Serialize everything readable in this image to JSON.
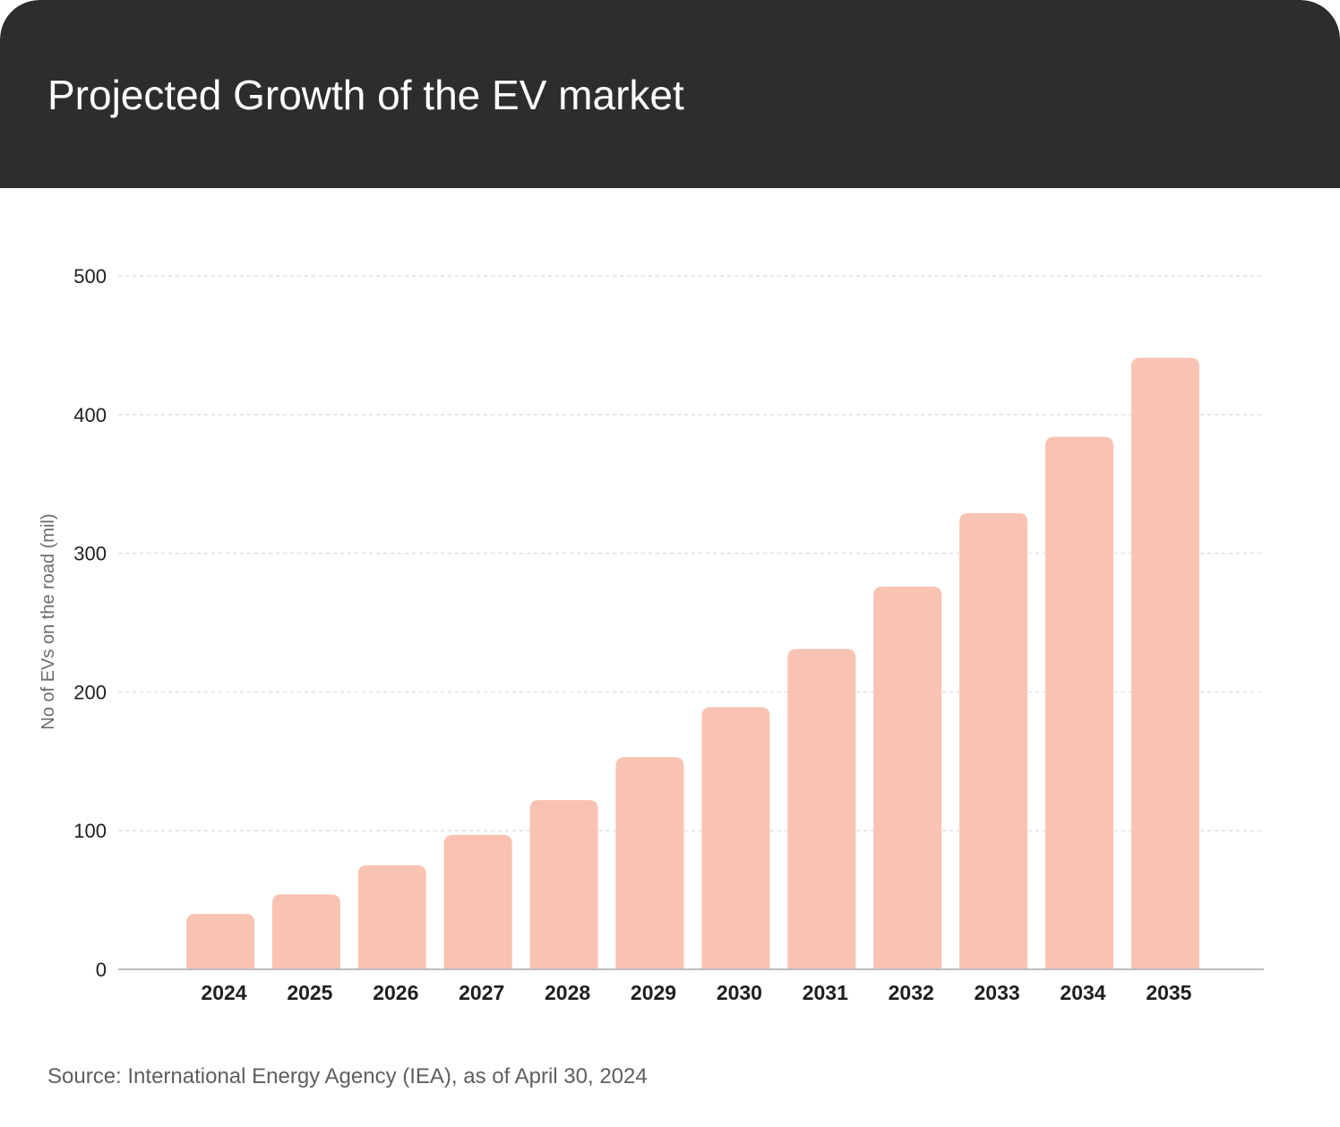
{
  "colors": {
    "header_bg": "#2d2d2d",
    "bar": "#f8c3b2",
    "gridline": "#e2e2e2",
    "baseline": "#bdbdbd"
  },
  "chart_data": {
    "type": "bar",
    "title": "Projected Growth of the EV market",
    "ylabel": "No of EVs on the road (mil)",
    "xlabel": "",
    "categories": [
      "2024",
      "2025",
      "2026",
      "2027",
      "2028",
      "2029",
      "2030",
      "2031",
      "2032",
      "2033",
      "2034",
      "2035"
    ],
    "values": [
      40,
      54,
      75,
      97,
      122,
      153,
      189,
      231,
      276,
      329,
      384,
      441
    ],
    "ylim": [
      0,
      500
    ],
    "yticks": [
      "0",
      "100",
      "200",
      "300",
      "400",
      "500"
    ],
    "grid": "horizontal dashed",
    "legend": "none"
  },
  "footer": {
    "source": "Source: International Energy Agency (IEA), as of April 30, 2024"
  }
}
